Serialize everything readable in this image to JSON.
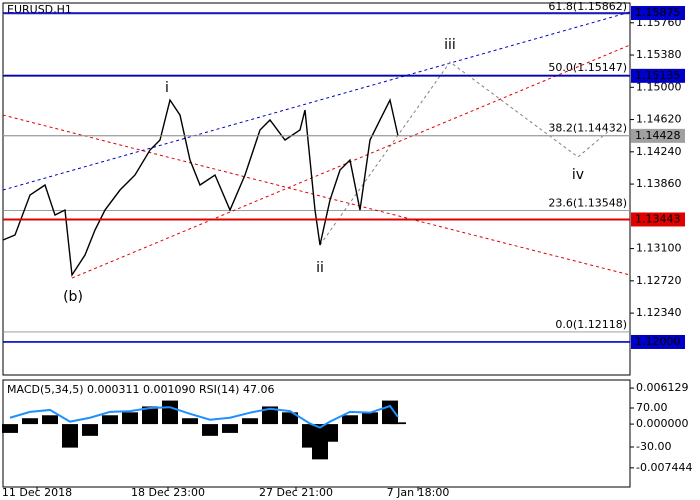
{
  "chart_data": [
    {
      "type": "price",
      "title": "EURUSD,H1",
      "x": [
        0,
        12,
        27,
        42,
        52,
        62,
        69,
        82,
        92,
        102,
        117,
        132,
        147,
        157,
        167,
        177,
        187,
        197,
        212,
        227,
        242,
        257,
        267,
        282,
        297,
        302,
        312,
        317,
        327,
        337,
        347,
        357,
        367,
        377,
        387,
        395
      ],
      "series": [
        {
          "color": "#000000",
          "values": [
            1.13201,
            1.1326,
            1.13731,
            1.13849,
            1.13495,
            1.13554,
            1.12789,
            1.13024,
            1.13319,
            1.13554,
            1.1379,
            1.13967,
            1.14261,
            1.14379,
            1.1485,
            1.14673,
            1.14143,
            1.13849,
            1.13967,
            1.13554,
            1.13967,
            1.14497,
            1.14615,
            1.14379,
            1.14497,
            1.14732,
            1.13554,
            1.13142,
            1.13672,
            1.14026,
            1.14143,
            1.13554,
            1.14379,
            1.14615,
            1.1485,
            1.14428
          ]
        }
      ],
      "xlim": [
        0,
        627
      ],
      "ylim": [
        1.11611,
        1.15993
      ],
      "yticks": [
        {
          "value": 1.1576,
          "label": "1.15760"
        },
        {
          "value": 1.1538,
          "label": "1.15380"
        },
        {
          "value": 1.15,
          "label": "1.15000"
        },
        {
          "value": 1.1462,
          "label": "1.14620"
        },
        {
          "value": 1.1424,
          "label": "1.14240"
        },
        {
          "value": 1.1386,
          "label": "1.13860"
        },
        {
          "value": 1.131,
          "label": "1.13100"
        },
        {
          "value": 1.1272,
          "label": "1.12720"
        },
        {
          "value": 1.1234,
          "label": "1.12340"
        }
      ],
      "levels": [
        {
          "value": 1.15875,
          "color": "#0000c8"
        },
        {
          "value": 1.15135,
          "color": "#0000c8"
        },
        {
          "value": 1.14428,
          "color": "#a0a0a0"
        },
        {
          "value": 1.13443,
          "color": "#e00000"
        },
        {
          "value": 1.12,
          "label": "1.12000",
          "color": "#0000c8"
        }
      ],
      "fib": [
        {
          "label": "61.8(1.15862)",
          "value": 1.15862
        },
        {
          "label": "50.0(1.15147)",
          "value": 1.15147
        },
        {
          "label": "38.2(1.14432)",
          "value": 1.14432
        },
        {
          "label": "23.6(1.13548)",
          "value": 1.13548
        },
        {
          "label": "0.0(1.12118)",
          "value": 1.12118
        }
      ],
      "trendlines": [
        {
          "color": "#0000c8",
          "x": [
            0,
            627
          ],
          "values": [
            1.1379,
            1.15887
          ]
        },
        {
          "color": "#e00000",
          "x": [
            69,
            627
          ],
          "values": [
            1.12753,
            1.15498
          ]
        },
        {
          "color": "#e00000",
          "x": [
            0,
            627
          ],
          "values": [
            1.14673,
            1.12789
          ]
        },
        {
          "color": "#808080",
          "x": [
            317,
            447,
            575,
            607
          ],
          "values": [
            1.13142,
            1.15298,
            1.14179,
            1.14497
          ]
        }
      ],
      "waves": [
        {
          "label": "i",
          "color": "#808080"
        },
        {
          "label": "ii",
          "color": "#808080"
        },
        {
          "label": "iii",
          "color": "#808080"
        },
        {
          "label": "iv",
          "color": "#808080"
        },
        {
          "label": "(b)",
          "color": "#e00000"
        }
      ]
    },
    {
      "type": "macd",
      "title": "MACD(5,34,5) 0.000311 0.001090 RSI(14) 47.06",
      "x": [
        7,
        27,
        47,
        67,
        87,
        107,
        127,
        147,
        167,
        187,
        207,
        227,
        247,
        267,
        287,
        307,
        317,
        327,
        347,
        367,
        387,
        395
      ],
      "series": [
        {
          "color": "#000000",
          "values": [
            -0.0015,
            0.001,
            0.0015,
            -0.004,
            -0.002,
            0.0015,
            0.002,
            0.003,
            0.004,
            0.001,
            -0.002,
            -0.0015,
            0.001,
            0.003,
            0.002,
            -0.004,
            -0.006,
            -0.003,
            0.0015,
            0.002,
            0.004,
            0.0003
          ]
        },
        {
          "color": "#1e90ff",
          "axis": "y2",
          "values": [
            45,
            60,
            65,
            35,
            45,
            60,
            62,
            70,
            72,
            55,
            40,
            45,
            58,
            68,
            62,
            30,
            20,
            35,
            60,
            58,
            75,
            47.06
          ]
        }
      ],
      "xlim": [
        0,
        627
      ],
      "ylim": [
        -0.0107,
        0.0075
      ],
      "yticks": [
        0.006129,
        {
          "value": 0,
          "label": "0.000000"
        },
        -0.007444
      ],
      "y2lim": [
        -132.6,
        141.8
      ],
      "y2ticks": [
        {
          "value": 70,
          "label": "70.00"
        },
        {
          "value": -30,
          "label": "-30.00"
        }
      ],
      "xticks": [
        {
          "value": 34,
          "label": "11 Dec 2018"
        },
        {
          "value": 165,
          "label": "18 Dec 23:00"
        },
        {
          "value": 293,
          "label": "27 Dec 21:00"
        },
        {
          "value": 415,
          "label": "7 Jan 18:00"
        }
      ]
    }
  ]
}
